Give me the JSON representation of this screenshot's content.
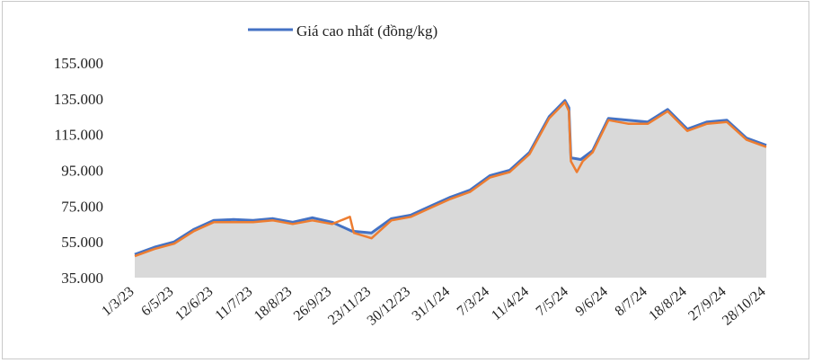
{
  "chart_data": {
    "type": "line",
    "legend": {
      "position": "top",
      "series_name": "Giá cao nhất (đồng/kg)"
    },
    "y_ticks": [
      "155.000",
      "135.000",
      "115.000",
      "95.000",
      "75.000",
      "55.000",
      "35.000"
    ],
    "ylim": [
      35000,
      155000
    ],
    "x_ticks": [
      "1/3/23",
      "6/5/23",
      "12/6/23",
      "11/7/23",
      "18/8/23",
      "26/9/23",
      "23/11/23",
      "30/12/23",
      "31/1/24",
      "7/3/24",
      "11/4/24",
      "7/5/24",
      "9/6/24",
      "8/7/24",
      "18/8/24",
      "27/9/24",
      "28/10/24"
    ],
    "series": [
      {
        "name": "Giá cao nhất (đồng/kg)",
        "color": "#4472C4",
        "x": [
          0,
          0.5,
          1,
          1.5,
          2,
          2.5,
          3,
          3.5,
          4,
          4.5,
          5,
          5.5,
          6,
          6.5,
          7,
          7.5,
          8,
          8.5,
          9,
          9.5,
          10,
          10.5,
          10.9,
          11,
          11.05,
          11.3,
          11.6,
          12,
          12.5,
          13,
          13.5,
          14,
          14.5,
          15,
          15.5,
          16
        ],
        "values": [
          48000,
          52000,
          55000,
          62000,
          67000,
          67500,
          67000,
          68000,
          66000,
          68500,
          66000,
          61000,
          60000,
          68000,
          70000,
          75000,
          80000,
          84000,
          92000,
          95000,
          105000,
          125000,
          134000,
          130000,
          102000,
          101000,
          106000,
          124000,
          123000,
          122000,
          129000,
          118000,
          122000,
          123000,
          113000,
          109000
        ]
      },
      {
        "name": "",
        "color": "#ED7D31",
        "x": [
          0,
          0.5,
          1,
          1.5,
          2,
          2.5,
          3,
          3.5,
          4,
          4.5,
          5,
          5.45,
          5.55,
          6,
          6.5,
          7,
          7.5,
          8,
          8.5,
          9,
          9.5,
          10,
          10.5,
          10.9,
          11,
          11.05,
          11.2,
          11.35,
          11.6,
          12,
          12.5,
          13,
          13.5,
          14,
          14.5,
          15,
          15.5,
          16
        ],
        "values": [
          47000,
          51000,
          54000,
          61000,
          66000,
          66000,
          66000,
          67000,
          65000,
          67000,
          65000,
          69000,
          60000,
          57000,
          67000,
          69000,
          74000,
          79000,
          83000,
          91000,
          94000,
          104000,
          124000,
          133000,
          128000,
          100000,
          94000,
          100000,
          105000,
          123000,
          121000,
          121000,
          128000,
          117000,
          121000,
          122000,
          112000,
          108000
        ]
      }
    ]
  }
}
